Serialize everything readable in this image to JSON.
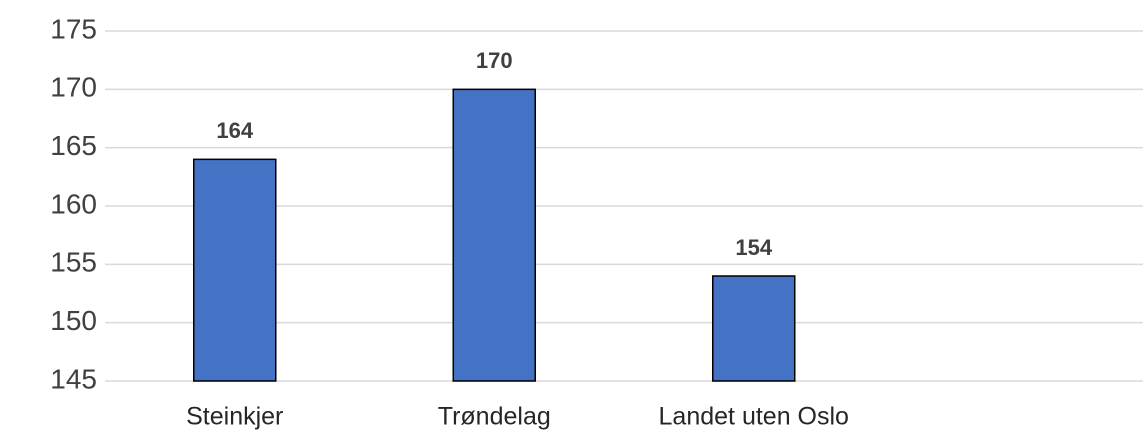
{
  "chart_data": {
    "type": "bar",
    "categories": [
      "Steinkjer",
      "Trøndelag",
      "Landet uten Oslo",
      null
    ],
    "values": [
      164,
      170,
      154,
      null
    ],
    "color": "#4472c4",
    "ylim": [
      145,
      175
    ],
    "yticks": [
      145,
      150,
      155,
      160,
      165,
      170,
      175
    ],
    "grid": true
  }
}
